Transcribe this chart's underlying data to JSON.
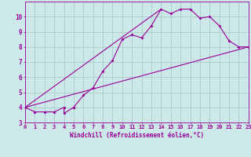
{
  "xlabel": "Windchill (Refroidissement éolien,°C)",
  "bg_color": "#cce8e8",
  "line_color": "#990099",
  "grid_color": "#aacccc",
  "xlim": [
    0,
    23
  ],
  "ylim": [
    3,
    11
  ],
  "xticks": [
    0,
    1,
    2,
    3,
    4,
    5,
    6,
    7,
    8,
    9,
    10,
    11,
    12,
    13,
    14,
    15,
    16,
    17,
    18,
    19,
    20,
    21,
    22,
    23
  ],
  "yticks": [
    3,
    4,
    5,
    6,
    7,
    8,
    9,
    10
  ],
  "scatter_x": [
    0,
    1,
    2,
    3,
    4,
    4,
    5,
    5,
    6,
    7,
    8,
    9,
    10,
    11,
    12,
    13,
    14,
    15,
    16,
    17,
    18,
    19,
    20,
    21,
    22,
    23
  ],
  "scatter_y": [
    4.0,
    3.7,
    3.7,
    3.7,
    4.0,
    3.6,
    4.0,
    4.0,
    4.8,
    5.3,
    6.4,
    7.1,
    8.5,
    8.8,
    8.6,
    9.4,
    10.5,
    10.2,
    10.5,
    10.5,
    9.9,
    10.0,
    9.4,
    8.4,
    8.0,
    8.0
  ],
  "line1_x": [
    0,
    23
  ],
  "line1_y": [
    4.0,
    8.0
  ],
  "line2_x": [
    0,
    14
  ],
  "line2_y": [
    4.0,
    10.5
  ]
}
